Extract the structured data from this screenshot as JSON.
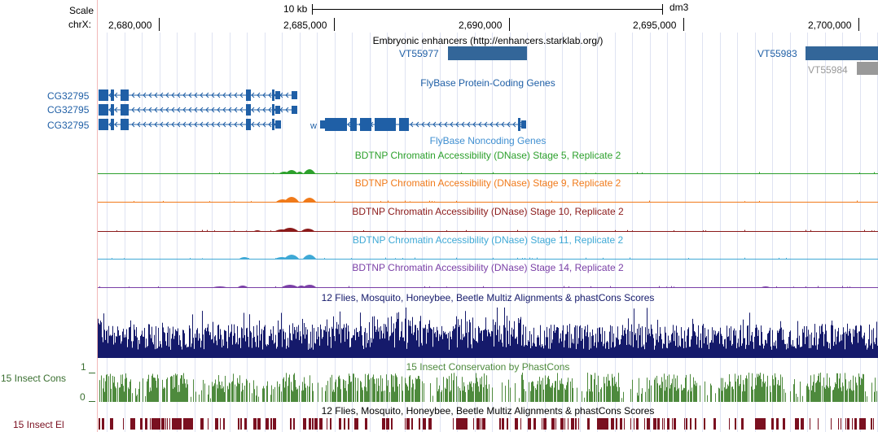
{
  "ruler": {
    "scale_label": "Scale",
    "chrom_label": "chrX:",
    "scale_bar_label": "10 kb",
    "assembly": "dm3",
    "positions": [
      "2,680,000",
      "2,685,000",
      "2,690,000",
      "2,695,000",
      "2,700,000"
    ]
  },
  "tracks": {
    "enhancers": {
      "title": "Embryonic enhancers (http://enhancers.starklab.org/)",
      "items": [
        "VT55977",
        "VT55983",
        "VT55984"
      ],
      "colors": {
        "active": "#336699",
        "inactive": "#999999"
      }
    },
    "protein_coding": {
      "title": "FlyBase Protein-Coding Genes",
      "genes": [
        "CG32795",
        "CG32795",
        "CG32795"
      ],
      "w_gene": "w",
      "color": "#1f5fa6"
    },
    "noncoding": {
      "title": "FlyBase Noncoding Genes"
    },
    "dnase": [
      {
        "title": "BDTNP Chromatin Accessibility (DNase) Stage 5, Replicate 2",
        "color": "#2ca02c"
      },
      {
        "title": "BDTNP Chromatin Accessibility (DNase) Stage 9, Replicate 2",
        "color": "#f07a1a"
      },
      {
        "title": "BDTNP Chromatin Accessibility (DNase) Stage 10, Replicate 2",
        "color": "#8b1a1a"
      },
      {
        "title": "BDTNP Chromatin Accessibility (DNase) Stage 11, Replicate 2",
        "color": "#3fa9d6"
      },
      {
        "title": "BDTNP Chromatin Accessibility (DNase) Stage 14, Replicate 2",
        "color": "#7a3fa6"
      }
    ],
    "multiz": {
      "title": "12 Flies, Mosquito, Honeybee, Beetle Multiz Alignments & phastCons Scores",
      "color": "#151a6b"
    },
    "phastcons": {
      "title": "15 Insect Conservation by PhastCons",
      "side_label": "15 Insect Cons",
      "ymax": "1",
      "ymin": "0",
      "color": "#4e8a3d",
      "label_color": "#3a6f30"
    },
    "elements": {
      "title": "12 Flies, Mosquito, Honeybee, Beetle Multiz Alignments & phastCons Scores",
      "side_label": "15 Insect El",
      "color": "#7a1020"
    }
  }
}
